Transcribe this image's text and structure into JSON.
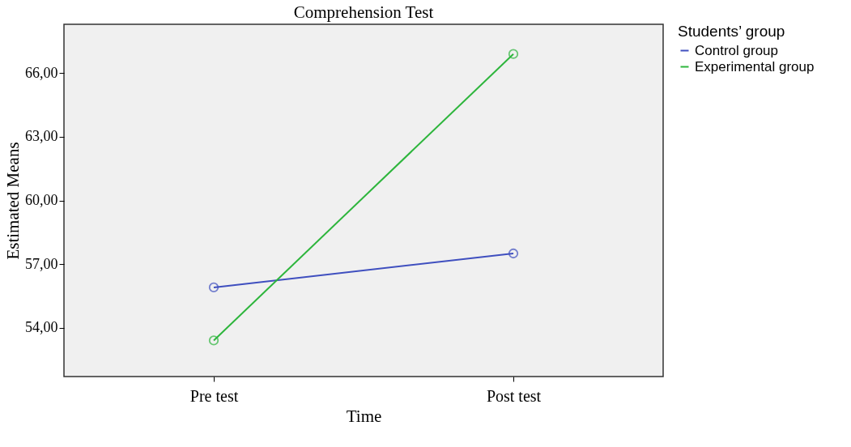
{
  "chart_data": {
    "type": "line",
    "title": "Comprehension Test",
    "xlabel": "Time",
    "ylabel": "Estimated Means",
    "legend_title": "Students’ group",
    "categories": [
      "Pre test",
      "Post test"
    ],
    "series": [
      {
        "name": "Control group",
        "color": "#3f4fbf",
        "values": [
          55.9,
          57.5
        ]
      },
      {
        "name": "Experimental group",
        "color": "#2db53c",
        "values": [
          53.4,
          66.9
        ]
      }
    ],
    "ylim": [
      51.7,
      68.3
    ],
    "yticks": [
      {
        "value": 54,
        "label": "54,00"
      },
      {
        "value": 57,
        "label": "57,00"
      },
      {
        "value": 60,
        "label": "60,00"
      },
      {
        "value": 63,
        "label": "63,00"
      },
      {
        "value": 66,
        "label": "66,00"
      }
    ],
    "marker": "circle",
    "line_style": "solid",
    "legend": "top right",
    "grid": false
  }
}
